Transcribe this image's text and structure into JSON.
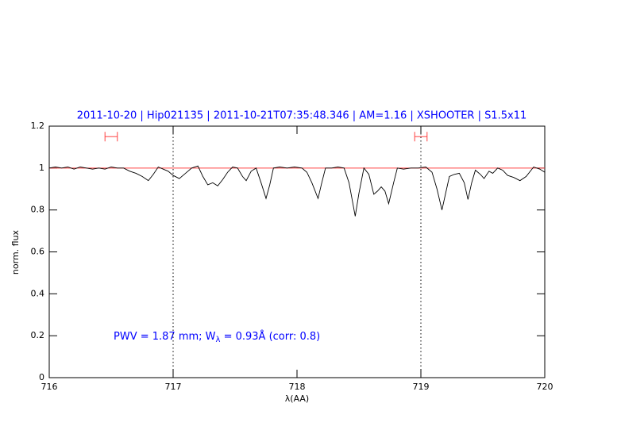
{
  "chart_data": {
    "type": "line",
    "title": "2011-10-20 | Hip021135 | 2011-10-21T07:35:48.346 | AM=1.16 | XSHOOTER | S1.5x11",
    "xlabel": "λ(AA)",
    "ylabel": "norm. flux",
    "annotation": [
      "PWV = 1.87 mm; W",
      "λ",
      " = 0.93Å (corr: 0.8)"
    ],
    "xlim": [
      716,
      720
    ],
    "ylim": [
      0,
      1.2
    ],
    "xticks": [
      716,
      717,
      718,
      719,
      720
    ],
    "yticks": [
      0,
      0.2,
      0.4,
      0.6,
      0.8,
      1,
      1.2
    ],
    "color": "#000000",
    "reference_line": 1,
    "reference_color": "#ff4040",
    "vlines": [
      717,
      719
    ],
    "ranges": [
      [
        716.45,
        716.55
      ],
      [
        718.95,
        719.05
      ]
    ],
    "range_y": 1.15,
    "range_color": "#ff4040",
    "x": [
      716.0,
      716.05,
      716.1,
      716.15,
      716.2,
      716.25,
      716.3,
      716.35,
      716.4,
      716.45,
      716.5,
      716.55,
      716.6,
      716.65,
      716.7,
      716.75,
      716.8,
      716.84,
      716.88,
      716.92,
      716.96,
      717.0,
      717.05,
      717.1,
      717.15,
      717.2,
      717.24,
      717.28,
      717.32,
      717.36,
      717.4,
      717.44,
      717.48,
      717.52,
      717.56,
      717.59,
      717.63,
      717.67,
      717.71,
      717.75,
      717.78,
      717.81,
      717.86,
      717.92,
      717.98,
      718.04,
      718.08,
      718.12,
      718.17,
      718.2,
      718.23,
      718.28,
      718.33,
      718.38,
      718.42,
      718.47,
      718.5,
      718.54,
      718.58,
      718.62,
      718.65,
      718.68,
      718.71,
      718.74,
      718.78,
      718.81,
      718.86,
      718.92,
      718.98,
      719.04,
      719.09,
      719.13,
      719.17,
      719.2,
      719.23,
      719.27,
      719.31,
      719.35,
      719.38,
      719.41,
      719.44,
      719.48,
      719.51,
      719.55,
      719.58,
      719.62,
      719.66,
      719.7,
      719.75,
      719.8,
      719.85,
      719.91,
      719.96,
      720.0
    ],
    "values": [
      1.0,
      1.005,
      1.0,
      1.005,
      0.995,
      1.005,
      1.0,
      0.995,
      1.0,
      0.995,
      1.005,
      1.0,
      1.0,
      0.985,
      0.975,
      0.96,
      0.94,
      0.97,
      1.005,
      0.995,
      0.985,
      0.965,
      0.95,
      0.975,
      1.0,
      1.01,
      0.96,
      0.92,
      0.93,
      0.915,
      0.945,
      0.98,
      1.005,
      1.0,
      0.96,
      0.94,
      0.985,
      1.0,
      0.93,
      0.855,
      0.92,
      1.0,
      1.005,
      1.0,
      1.005,
      1.0,
      0.98,
      0.93,
      0.855,
      0.93,
      1.0,
      1.0,
      1.005,
      1.0,
      0.93,
      0.77,
      0.88,
      1.0,
      0.97,
      0.875,
      0.89,
      0.91,
      0.89,
      0.83,
      0.93,
      1.0,
      0.995,
      1.0,
      1.0,
      1.005,
      0.98,
      0.9,
      0.8,
      0.88,
      0.96,
      0.97,
      0.975,
      0.93,
      0.85,
      0.93,
      0.99,
      0.97,
      0.95,
      0.985,
      0.975,
      1.0,
      0.99,
      0.965,
      0.955,
      0.94,
      0.96,
      1.005,
      0.995,
      0.98
    ]
  }
}
